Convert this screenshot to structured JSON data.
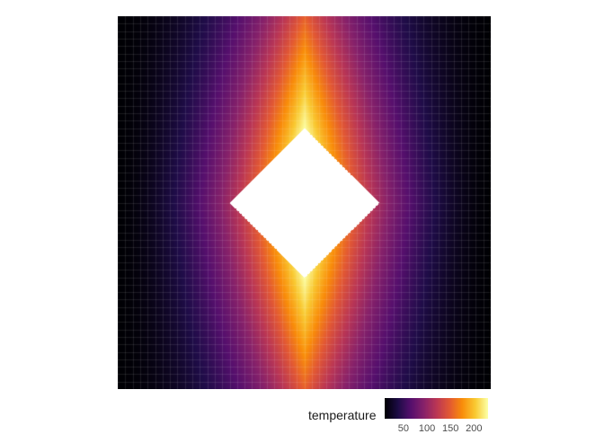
{
  "chart_data": {
    "type": "heatmap",
    "description_of_field": "temperature field on a square grid; hot diamond-shaped core (saturated, value >= 230) at center, decaying toward left/right edges",
    "x_range": [
      0,
      1
    ],
    "y_range": [
      0,
      1
    ],
    "core": {
      "shape": "diamond",
      "center": [
        0.5,
        0.5
      ],
      "half_width": 0.2,
      "value": 230
    },
    "min_value": 10,
    "max_value": 230,
    "grid": true,
    "colormap": "inferno",
    "legend": {
      "title": "temperature",
      "placement": "bottom-right",
      "ticks": [
        "50",
        "100",
        "150",
        "200"
      ],
      "tick_values": [
        50,
        100,
        150,
        200
      ],
      "limits": [
        10,
        230
      ]
    },
    "xlabel": "",
    "ylabel": ""
  }
}
